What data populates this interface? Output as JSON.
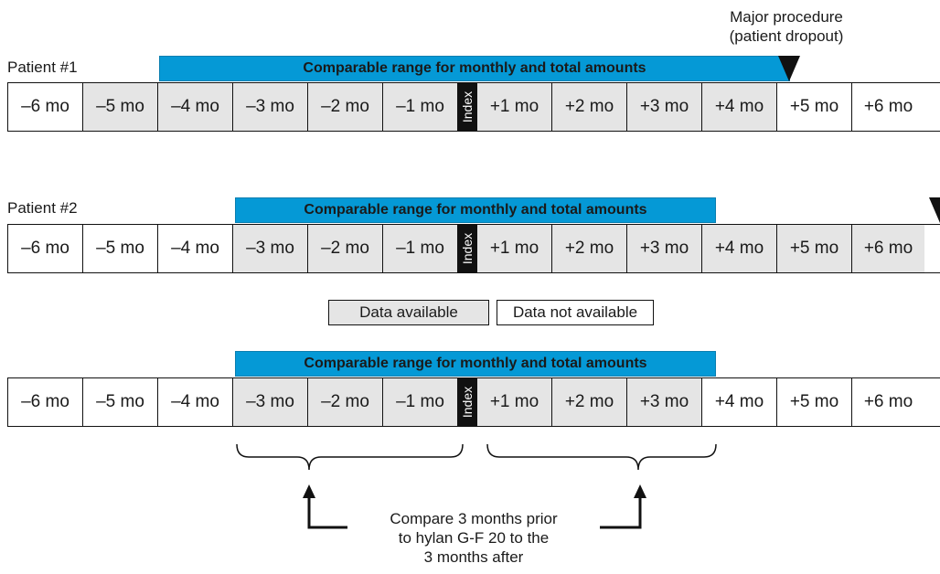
{
  "major_procedure": {
    "line1": "Major procedure",
    "line2": "(patient dropout)"
  },
  "banner_text": "Comparable range for monthly and total amounts",
  "months": [
    "–6 mo",
    "–5 mo",
    "–4 mo",
    "–3 mo",
    "–2 mo",
    "–1 mo",
    "Index",
    "+1 mo",
    "+2 mo",
    "+3 mo",
    "+4 mo",
    "+5 mo",
    "+6 mo"
  ],
  "patient1": {
    "label": "Patient #1"
  },
  "patient2": {
    "label": "Patient #2"
  },
  "legend": {
    "available": "Data available",
    "not_available": "Data not available"
  },
  "annotation": {
    "line1": "Compare 3 months prior",
    "line2": "to hylan G-F 20 to the",
    "line3": "3 months after"
  },
  "colors": {
    "banner": "#0599d6",
    "available": "#e5e5e5",
    "index": "#111111"
  }
}
